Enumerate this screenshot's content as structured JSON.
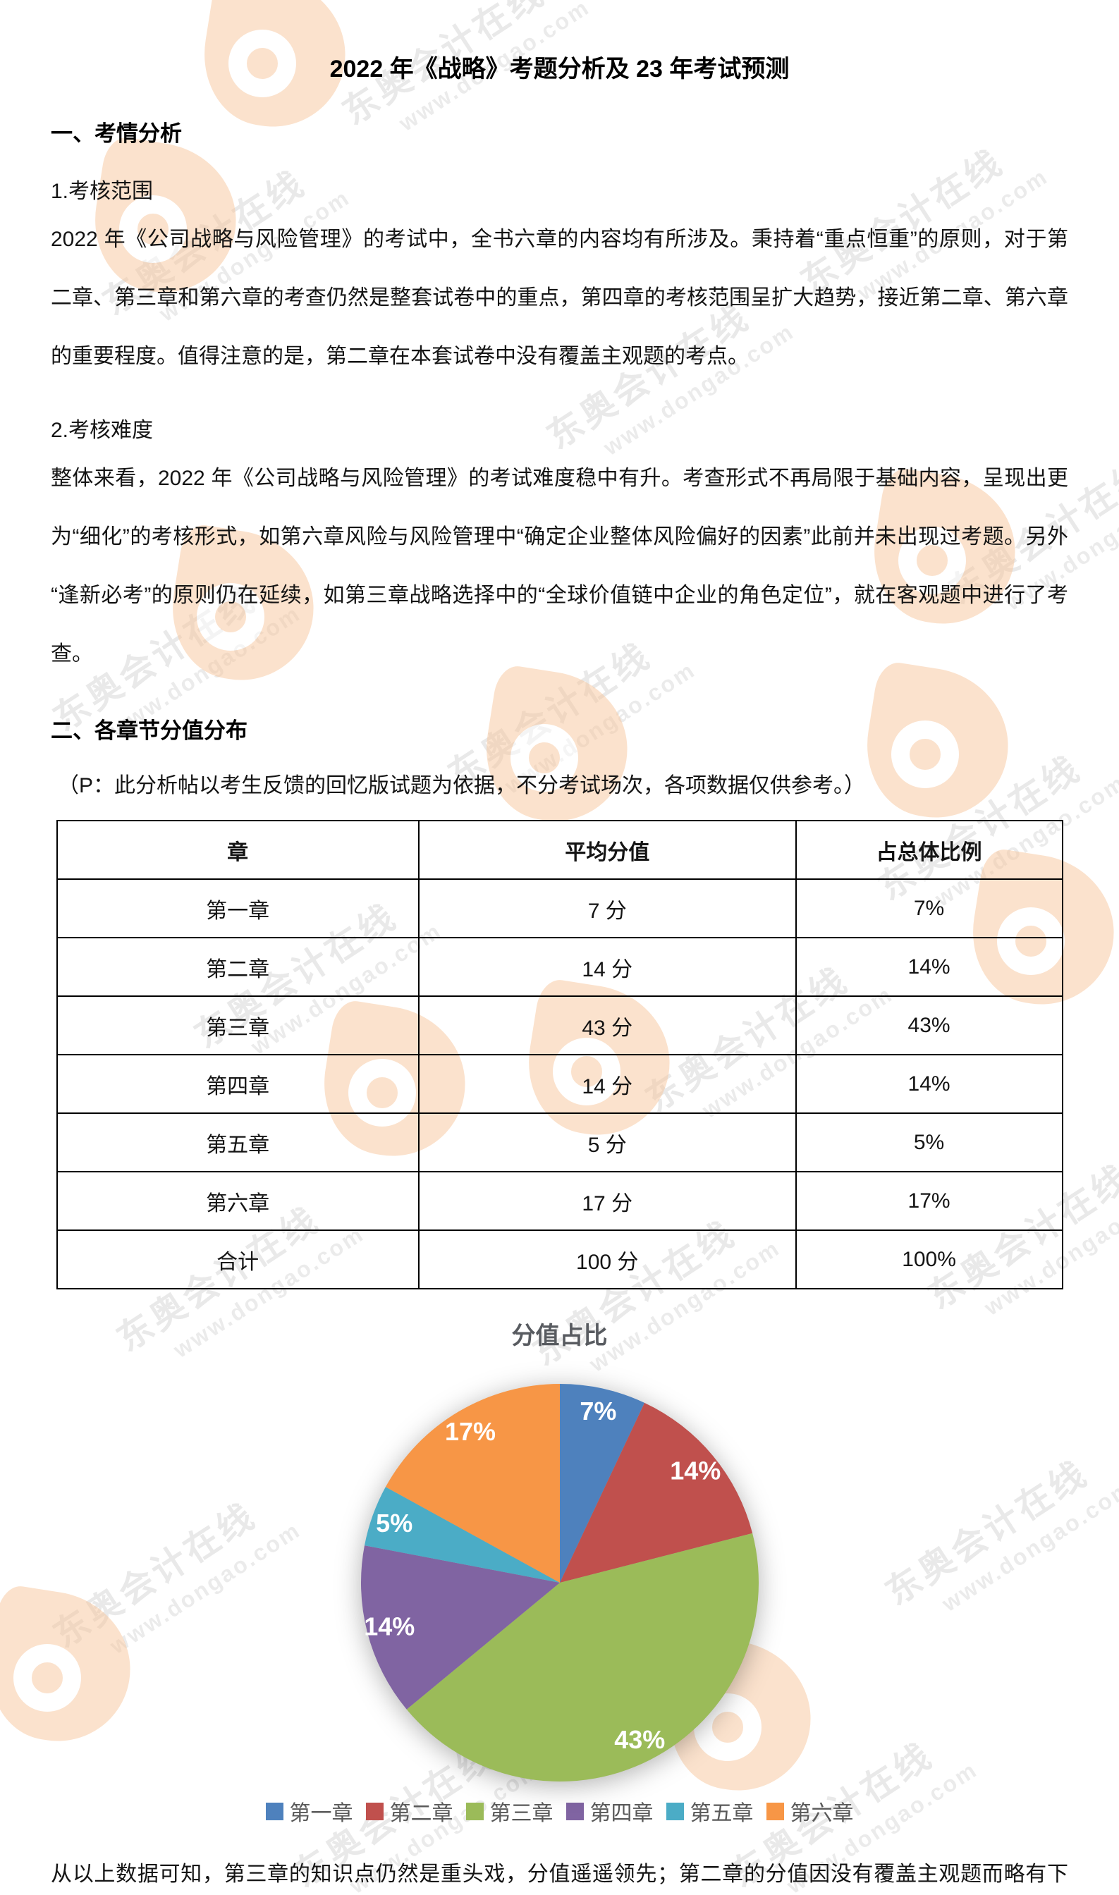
{
  "document": {
    "title": "2022 年《战略》考题分析及 23 年考试预测",
    "section1": {
      "heading": "一、考情分析",
      "sub1": "1.考核范围",
      "para1": "2022 年《公司战略与风险管理》的考试中，全书六章的内容均有所涉及。秉持着“重点恒重”的原则，对于第二章、第三章和第六章的考查仍然是整套试卷中的重点，第四章的考核范围呈扩大趋势，接近第二章、第六章的重要程度。值得注意的是，第二章在本套试卷中没有覆盖主观题的考点。",
      "sub2": "2.考核难度",
      "para2": "整体来看，2022 年《公司战略与风险管理》的考试难度稳中有升。考查形式不再局限于基础内容，呈现出更为“细化”的考核形式，如第六章风险与风险管理中“确定企业整体风险偏好的因素”此前并未出现过考题。另外“逢新必考”的原则仍在延续，如第三章战略选择中的“全球价值链中企业的角色定位”，就在客观题中进行了考查。"
    },
    "section2": {
      "heading": "二、各章节分值分布",
      "note": "（P：此分析帖以考生反馈的回忆版试题为依据，不分考试场次，各项数据仅供参考。）"
    },
    "closing": "从以上数据可知，第三章的知识点仍然是重头戏，分值遥遥领先；第二章的分值因没有覆盖主观题而略有下降；其他章节的分值比较稳定，与去年差别不大。"
  },
  "table": {
    "headers": [
      "章",
      "平均分值",
      "占总体比例"
    ],
    "rows": [
      [
        "第一章",
        "7 分",
        "7%"
      ],
      [
        "第二章",
        "14 分",
        "14%"
      ],
      [
        "第三章",
        "43 分",
        "43%"
      ],
      [
        "第四章",
        "14 分",
        "14%"
      ],
      [
        "第五章",
        "5 分",
        "5%"
      ],
      [
        "第六章",
        "17 分",
        "17%"
      ],
      [
        "合计",
        "100 分",
        "100%"
      ]
    ]
  },
  "chart_data": {
    "type": "pie",
    "title": "分值占比",
    "categories": [
      "第一章",
      "第二章",
      "第三章",
      "第四章",
      "第五章",
      "第六章"
    ],
    "values": [
      7,
      14,
      43,
      14,
      5,
      17
    ],
    "labels": [
      "7%",
      "14%",
      "43%",
      "14%",
      "5%",
      "17%"
    ],
    "colors": [
      "#4E81BD",
      "#C0504D",
      "#9BBB59",
      "#8064A2",
      "#4BACC6",
      "#F79646"
    ],
    "start_position": "12-oclock-clockwise",
    "legend_position": "bottom"
  },
  "watermark": {
    "line1": "东奥会计在线",
    "line2": "www.dongao.com",
    "logo_icon": "dongao-flame-logo",
    "logo_color": "#F8C79C"
  }
}
